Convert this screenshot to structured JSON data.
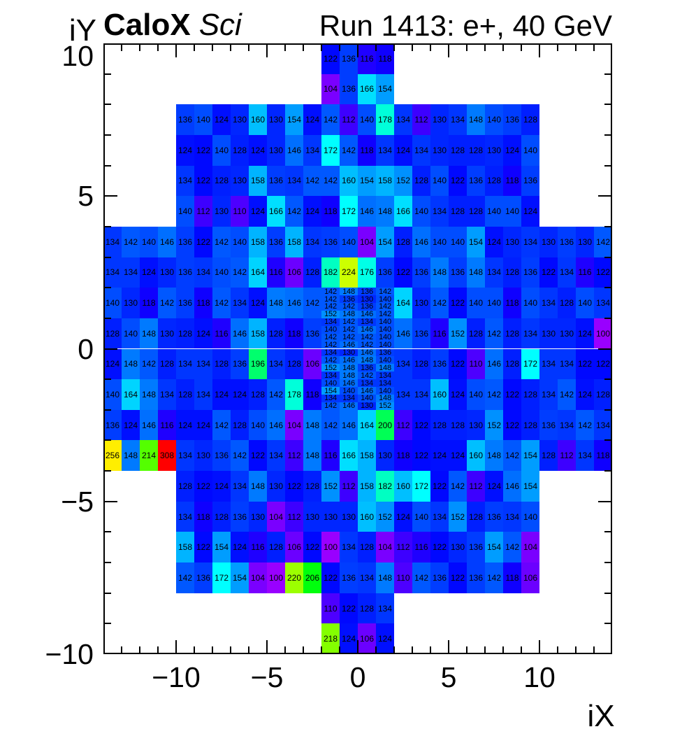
{
  "header": {
    "title_left_bold": "CaloX",
    "title_left_italic": "Sci",
    "title_right": "Run 1413: e+, 40 GeV"
  },
  "axes": {
    "x_title": "iX",
    "y_title": "iY",
    "x_ticks": [
      {
        "v": -10,
        "label": "−10"
      },
      {
        "v": -5,
        "label": "−5"
      },
      {
        "v": 0,
        "label": "0"
      },
      {
        "v": 5,
        "label": "5"
      },
      {
        "v": 10,
        "label": "10"
      }
    ],
    "y_ticks": [
      {
        "v": 10,
        "label": "10"
      },
      {
        "v": 5,
        "label": "5"
      },
      {
        "v": 0,
        "label": "0"
      },
      {
        "v": -5,
        "label": "−5"
      },
      {
        "v": -10,
        "label": "−10"
      }
    ]
  },
  "chart_data": {
    "type": "heatmap",
    "title": "Run 1413: e+, 40 GeV",
    "xlabel": "iX",
    "ylabel": "iY",
    "x_range": [
      -14,
      14
    ],
    "y_range": [
      -10,
      10
    ],
    "z_min": 100,
    "z_max": 308,
    "palette": {
      "sat": "100%",
      "light": "50%",
      "stops": [
        [
          100,
          276
        ],
        [
          120,
          240
        ],
        [
          140,
          222
        ],
        [
          160,
          195
        ],
        [
          172,
          180
        ],
        [
          200,
          140
        ],
        [
          224,
          72
        ],
        [
          256,
          56
        ],
        [
          308,
          0
        ]
      ]
    },
    "rows": [
      {
        "y": 9.5,
        "segments": [
          {
            "x": -2,
            "values": [
              122,
              136,
              116,
              118
            ]
          }
        ]
      },
      {
        "y": 8.5,
        "segments": [
          {
            "x": -2,
            "values": [
              104,
              136,
              166,
              154
            ]
          }
        ]
      },
      {
        "y": 7.5,
        "segments": [
          {
            "x": -10,
            "values": [
              136,
              140,
              124,
              130,
              160,
              130,
              154,
              124,
              142,
              112,
              140,
              178,
              134,
              112,
              130,
              134,
              148,
              140,
              136,
              128
            ]
          }
        ]
      },
      {
        "y": 6.5,
        "segments": [
          {
            "x": -10,
            "values": [
              124,
              122,
              140,
              128,
              124,
              130,
              146,
              134,
              172,
              142,
              118,
              134,
              124,
              134,
              130,
              128,
              128,
              130,
              124,
              140
            ]
          }
        ]
      },
      {
        "y": 5.5,
        "segments": [
          {
            "x": -10,
            "values": [
              134,
              122,
              128,
              130,
              158,
              136,
              134,
              142,
              142,
              160,
              154,
              158,
              152,
              128,
              140,
              122,
              136,
              128,
              118,
              136
            ]
          }
        ]
      },
      {
        "y": 4.5,
        "segments": [
          {
            "x": -10,
            "values": [
              140,
              112,
              130,
              110,
              124,
              166,
              142,
              124,
              118,
              172,
              146,
              148,
              166,
              140,
              134,
              128,
              128,
              140,
              140,
              124
            ]
          }
        ]
      },
      {
        "y": 3.5,
        "segments": [
          {
            "x": -14,
            "values": [
              134,
              142,
              140,
              146,
              136,
              122,
              142,
              140,
              158,
              136,
              158,
              134,
              136,
              140,
              104,
              154,
              128,
              146,
              140,
              140,
              154,
              124,
              130,
              134,
              130,
              136,
              130,
              142
            ]
          }
        ]
      },
      {
        "y": 2.5,
        "segments": [
          {
            "x": -14,
            "values": [
              134,
              134,
              124,
              130,
              136,
              134,
              140,
              142,
              164,
              116,
              106,
              128,
              182,
              224,
              176,
              136,
              122,
              136,
              148,
              136,
              148,
              134,
              128,
              136,
              122,
              134,
              116,
              122
            ]
          }
        ]
      },
      {
        "y": 1.5,
        "segments": [
          {
            "x": -14,
            "values": [
              140,
              130,
              118,
              142,
              136,
              118,
              142,
              134,
              124,
              148,
              146,
              142
            ]
          },
          {
            "x": 2,
            "values": [
              164,
              130,
              142,
              122,
              140,
              140,
              118,
              140,
              134,
              128,
              140,
              134
            ]
          }
        ]
      },
      {
        "y": 0.5,
        "segments": [
          {
            "x": -14,
            "values": [
              128,
              140,
              148,
              130,
              128,
              124,
              116,
              146,
              158,
              128,
              118,
              136
            ]
          },
          {
            "x": 2,
            "values": [
              146,
              136,
              116,
              152,
              128,
              142,
              128,
              134,
              130,
              130,
              124,
              100
            ]
          }
        ]
      },
      {
        "y": -0.5,
        "segments": [
          {
            "x": -14,
            "values": [
              124,
              148,
              142,
              128,
              134,
              134,
              128,
              136,
              196,
              134,
              128,
              106
            ]
          },
          {
            "x": 2,
            "values": [
              134,
              128,
              136,
              122,
              110,
              146,
              128,
              172,
              134,
              134,
              122,
              122
            ]
          }
        ]
      },
      {
        "y": -1.5,
        "segments": [
          {
            "x": -14,
            "values": [
              140,
              164,
              148,
              134,
              128,
              134,
              124,
              124,
              128,
              142,
              178,
              118
            ]
          },
          {
            "x": 2,
            "values": [
              134,
              134,
              160,
              124,
              140,
              142,
              122,
              128,
              134,
              142,
              124,
              128
            ]
          }
        ]
      },
      {
        "y": -2.5,
        "segments": [
          {
            "x": -14,
            "values": [
              136,
              124,
              146,
              116,
              124,
              124,
              142,
              128,
              140,
              146,
              104,
              148,
              142,
              146,
              164,
              200,
              112,
              122,
              128,
              128,
              130,
              152,
              122,
              128,
              136,
              134,
              142,
              134
            ]
          }
        ]
      },
      {
        "y": -3.5,
        "segments": [
          {
            "x": -14,
            "values": [
              256,
              148,
              214,
              308,
              134,
              130,
              136,
              142,
              122,
              134,
              112,
              148,
              116,
              166,
              158,
              130,
              118,
              122,
              124,
              124,
              160,
              148,
              142,
              154,
              128,
              112,
              134,
              118
            ]
          }
        ]
      },
      {
        "y": -4.5,
        "segments": [
          {
            "x": -10,
            "values": [
              128,
              122,
              124,
              134,
              148,
              130,
              122,
              128,
              152,
              112,
              158,
              182,
              160,
              172,
              122,
              142,
              112,
              124,
              146,
              154
            ]
          }
        ]
      },
      {
        "y": -5.5,
        "segments": [
          {
            "x": -10,
            "values": [
              134,
              118,
              128,
              136,
              130,
              104,
              112,
              130,
              130,
              130,
              160,
              152,
              124,
              140,
              134,
              152,
              128,
              136,
              134,
              140
            ]
          }
        ]
      },
      {
        "y": -6.5,
        "segments": [
          {
            "x": -10,
            "values": [
              158,
              122,
              154,
              124,
              116,
              128,
              106,
              122,
              100,
              134,
              128,
              104,
              112,
              116,
              122,
              130,
              136,
              154,
              142,
              104
            ]
          }
        ]
      },
      {
        "y": -7.5,
        "segments": [
          {
            "x": -10,
            "values": [
              142,
              136,
              172,
              154,
              104,
              100,
              220,
              206,
              122,
              136,
              134,
              148,
              110,
              142,
              136,
              122,
              136,
              142,
              118,
              106
            ]
          }
        ]
      },
      {
        "y": -8.5,
        "segments": [
          {
            "x": -2,
            "values": [
              110,
              122,
              128,
              134
            ]
          }
        ]
      },
      {
        "y": -9.5,
        "segments": [
          {
            "x": -2,
            "values": [
              218,
              124,
              106,
              124
            ]
          }
        ]
      }
    ],
    "fine_block": {
      "x": -2,
      "y_top": 2,
      "cell_w": 1,
      "cell_h": 0.25,
      "rows": [
        [
          142,
          148,
          136,
          142
        ],
        [
          142,
          136,
          130,
          140
        ],
        [
          142,
          142,
          136,
          142
        ],
        [
          152,
          148,
          146,
          142
        ],
        [
          134,
          142,
          134,
          140
        ],
        [
          140,
          142,
          146,
          140
        ],
        [
          142,
          142,
          142,
          140
        ],
        [
          142,
          146,
          142,
          140
        ],
        [
          134,
          130,
          146,
          136
        ],
        [
          142,
          146,
          148,
          140
        ],
        [
          152,
          148,
          136,
          148
        ],
        [
          134,
          148,
          142,
          134
        ],
        [
          140,
          146,
          134,
          134
        ],
        [
          154,
          140,
          146,
          140
        ],
        [
          134,
          134,
          140,
          148
        ],
        [
          142,
          146,
          130,
          152
        ]
      ]
    }
  }
}
